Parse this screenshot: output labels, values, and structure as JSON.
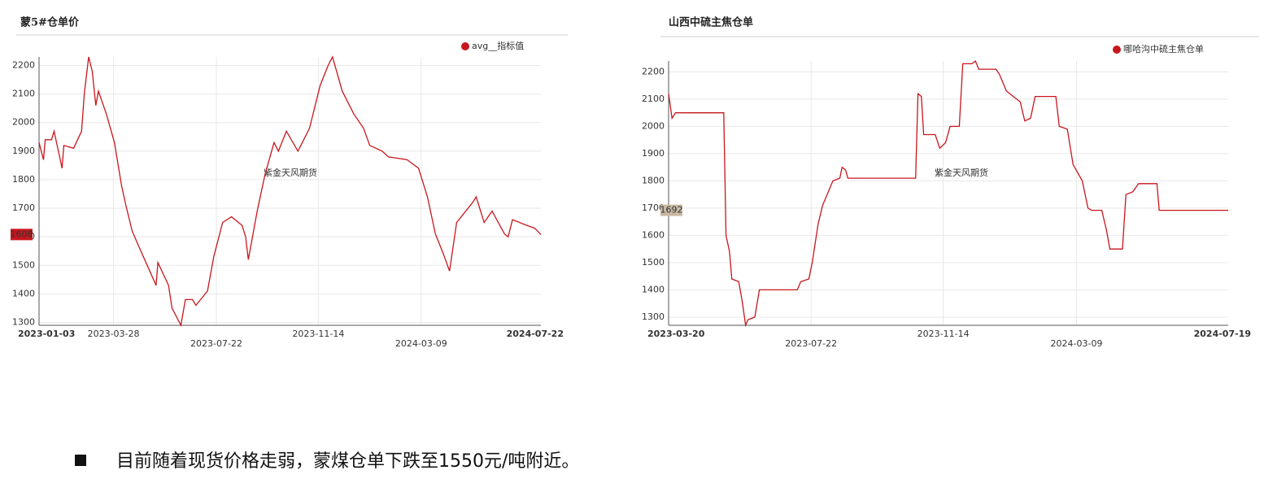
{
  "chart_data": [
    {
      "type": "line",
      "title": "蒙5#仓单价",
      "watermark": "紫金天风期货",
      "x": [
        "2023-01-03",
        "2023-01-08",
        "2023-01-10",
        "2023-01-17",
        "2023-01-20",
        "2023-01-29",
        "2023-01-31",
        "2023-02-11",
        "2023-02-20",
        "2023-02-23",
        "2023-02-28",
        "2023-03-04",
        "2023-03-08",
        "2023-03-11",
        "2023-03-20",
        "2023-03-29",
        "2023-04-06",
        "2023-04-11",
        "2023-04-18",
        "2023-04-25",
        "2023-05-05",
        "2023-05-15",
        "2023-05-17",
        "2023-05-29",
        "2023-06-02",
        "2023-06-12",
        "2023-06-17",
        "2023-06-25",
        "2023-06-29",
        "2023-07-12",
        "2023-07-19",
        "2023-07-29",
        "2023-08-08",
        "2023-08-20",
        "2023-08-24",
        "2023-08-27",
        "2023-09-06",
        "2023-09-15",
        "2023-09-25",
        "2023-09-30",
        "2023-10-09",
        "2023-10-22",
        "2023-11-04",
        "2023-11-16",
        "2023-11-25",
        "2023-11-30",
        "2023-12-11",
        "2023-12-24",
        "2024-01-04",
        "2024-01-11",
        "2024-01-25",
        "2024-02-01",
        "2024-02-22",
        "2024-03-06",
        "2024-03-16",
        "2024-03-25",
        "2024-04-03",
        "2024-04-10",
        "2024-04-18",
        "2024-05-06",
        "2024-05-10",
        "2024-05-19",
        "2024-05-28",
        "2024-06-11",
        "2024-06-15",
        "2024-06-20",
        "2024-07-06",
        "2024-07-15",
        "2024-07-22"
      ],
      "series": [
        {
          "name": "avg__指标值",
          "color": "#c8161d",
          "values": [
            1930,
            1870,
            1940,
            1940,
            1970,
            1840,
            1920,
            1910,
            1970,
            2100,
            2230,
            2180,
            2060,
            2110,
            2030,
            1930,
            1780,
            1710,
            1620,
            1570,
            1500,
            1430,
            1510,
            1430,
            1350,
            1290,
            1380,
            1380,
            1360,
            1410,
            1530,
            1650,
            1670,
            1640,
            1600,
            1520,
            1690,
            1820,
            1930,
            1900,
            1970,
            1900,
            1980,
            2130,
            2200,
            2230,
            2110,
            2030,
            1980,
            1920,
            1900,
            1880,
            1870,
            1840,
            1740,
            1610,
            1540,
            1480,
            1650,
            1720,
            1740,
            1650,
            1690,
            1610,
            1600,
            1660,
            1640,
            1630,
            1608
          ]
        }
      ],
      "xlim": [
        "2023-01-03",
        "2024-07-22"
      ],
      "xticks": [
        "2023-01-03",
        "2023-03-28",
        "2023-07-22",
        "2023-11-14",
        "2024-03-09",
        "2024-07-22"
      ],
      "ylim": [
        1290,
        2230
      ],
      "yticks": [
        1300,
        1400,
        1500,
        1600,
        1700,
        1800,
        1900,
        2000,
        2100,
        2200
      ],
      "grid": true,
      "current_value": 1608,
      "current_value_color": "#c8161d"
    },
    {
      "type": "line",
      "title": "山西中硫主焦仓单",
      "watermark": "紫金天风期货",
      "x": [
        "2023-03-20",
        "2023-03-23",
        "2023-03-26",
        "2023-05-07",
        "2023-05-09",
        "2023-05-12",
        "2023-05-14",
        "2023-05-20",
        "2023-05-23",
        "2023-05-26",
        "2023-05-28",
        "2023-06-03",
        "2023-06-07",
        "2023-07-10",
        "2023-07-13",
        "2023-07-20",
        "2023-07-23",
        "2023-07-28",
        "2023-08-01",
        "2023-08-06",
        "2023-08-10",
        "2023-08-16",
        "2023-08-18",
        "2023-08-21",
        "2023-08-23",
        "2023-10-21",
        "2023-10-23",
        "2023-10-26",
        "2023-10-28",
        "2023-11-07",
        "2023-11-11",
        "2023-11-16",
        "2023-11-20",
        "2023-11-28",
        "2023-12-01",
        "2023-12-09",
        "2023-12-12",
        "2023-12-15",
        "2023-12-30",
        "2024-01-02",
        "2024-01-08",
        "2024-01-14",
        "2024-01-20",
        "2024-01-24",
        "2024-01-29",
        "2024-02-02",
        "2024-02-20",
        "2024-02-23",
        "2024-03-01",
        "2024-03-06",
        "2024-03-14",
        "2024-03-19",
        "2024-03-22",
        "2024-03-31",
        "2024-04-04",
        "2024-04-07",
        "2024-04-18",
        "2024-04-21",
        "2024-04-27",
        "2024-05-02",
        "2024-05-18",
        "2024-05-20",
        "2024-07-19"
      ],
      "series": [
        {
          "name": "哪哈沟中硫主焦仓单",
          "color": "#c8161d",
          "values": [
            2120,
            2030,
            2050,
            2050,
            1600,
            1540,
            1440,
            1430,
            1360,
            1270,
            1290,
            1300,
            1400,
            1400,
            1430,
            1440,
            1500,
            1640,
            1710,
            1760,
            1800,
            1810,
            1850,
            1840,
            1810,
            1810,
            2120,
            2110,
            1970,
            1970,
            1920,
            1940,
            2000,
            2000,
            2230,
            2230,
            2240,
            2210,
            2210,
            2190,
            2130,
            2110,
            2090,
            2020,
            2030,
            2110,
            2110,
            2000,
            1990,
            1860,
            1800,
            1700,
            1692,
            1692,
            1620,
            1550,
            1550,
            1750,
            1760,
            1790,
            1790,
            1692,
            1692
          ]
        }
      ],
      "xlim": [
        "2023-03-20",
        "2024-07-19"
      ],
      "xticks": [
        "2023-03-20",
        "2023-07-22",
        "2023-11-14",
        "2024-03-09",
        "2024-07-19"
      ],
      "ylim": [
        1270,
        2240
      ],
      "yticks": [
        1300,
        1400,
        1500,
        1600,
        1700,
        1800,
        1900,
        2000,
        2100,
        2200
      ],
      "grid": true,
      "current_value": 1692,
      "current_value_color": "#c9b9a3"
    }
  ],
  "bullet": "目前随着现货价格走弱，蒙煤仓单下跌至1550元/吨附近。"
}
